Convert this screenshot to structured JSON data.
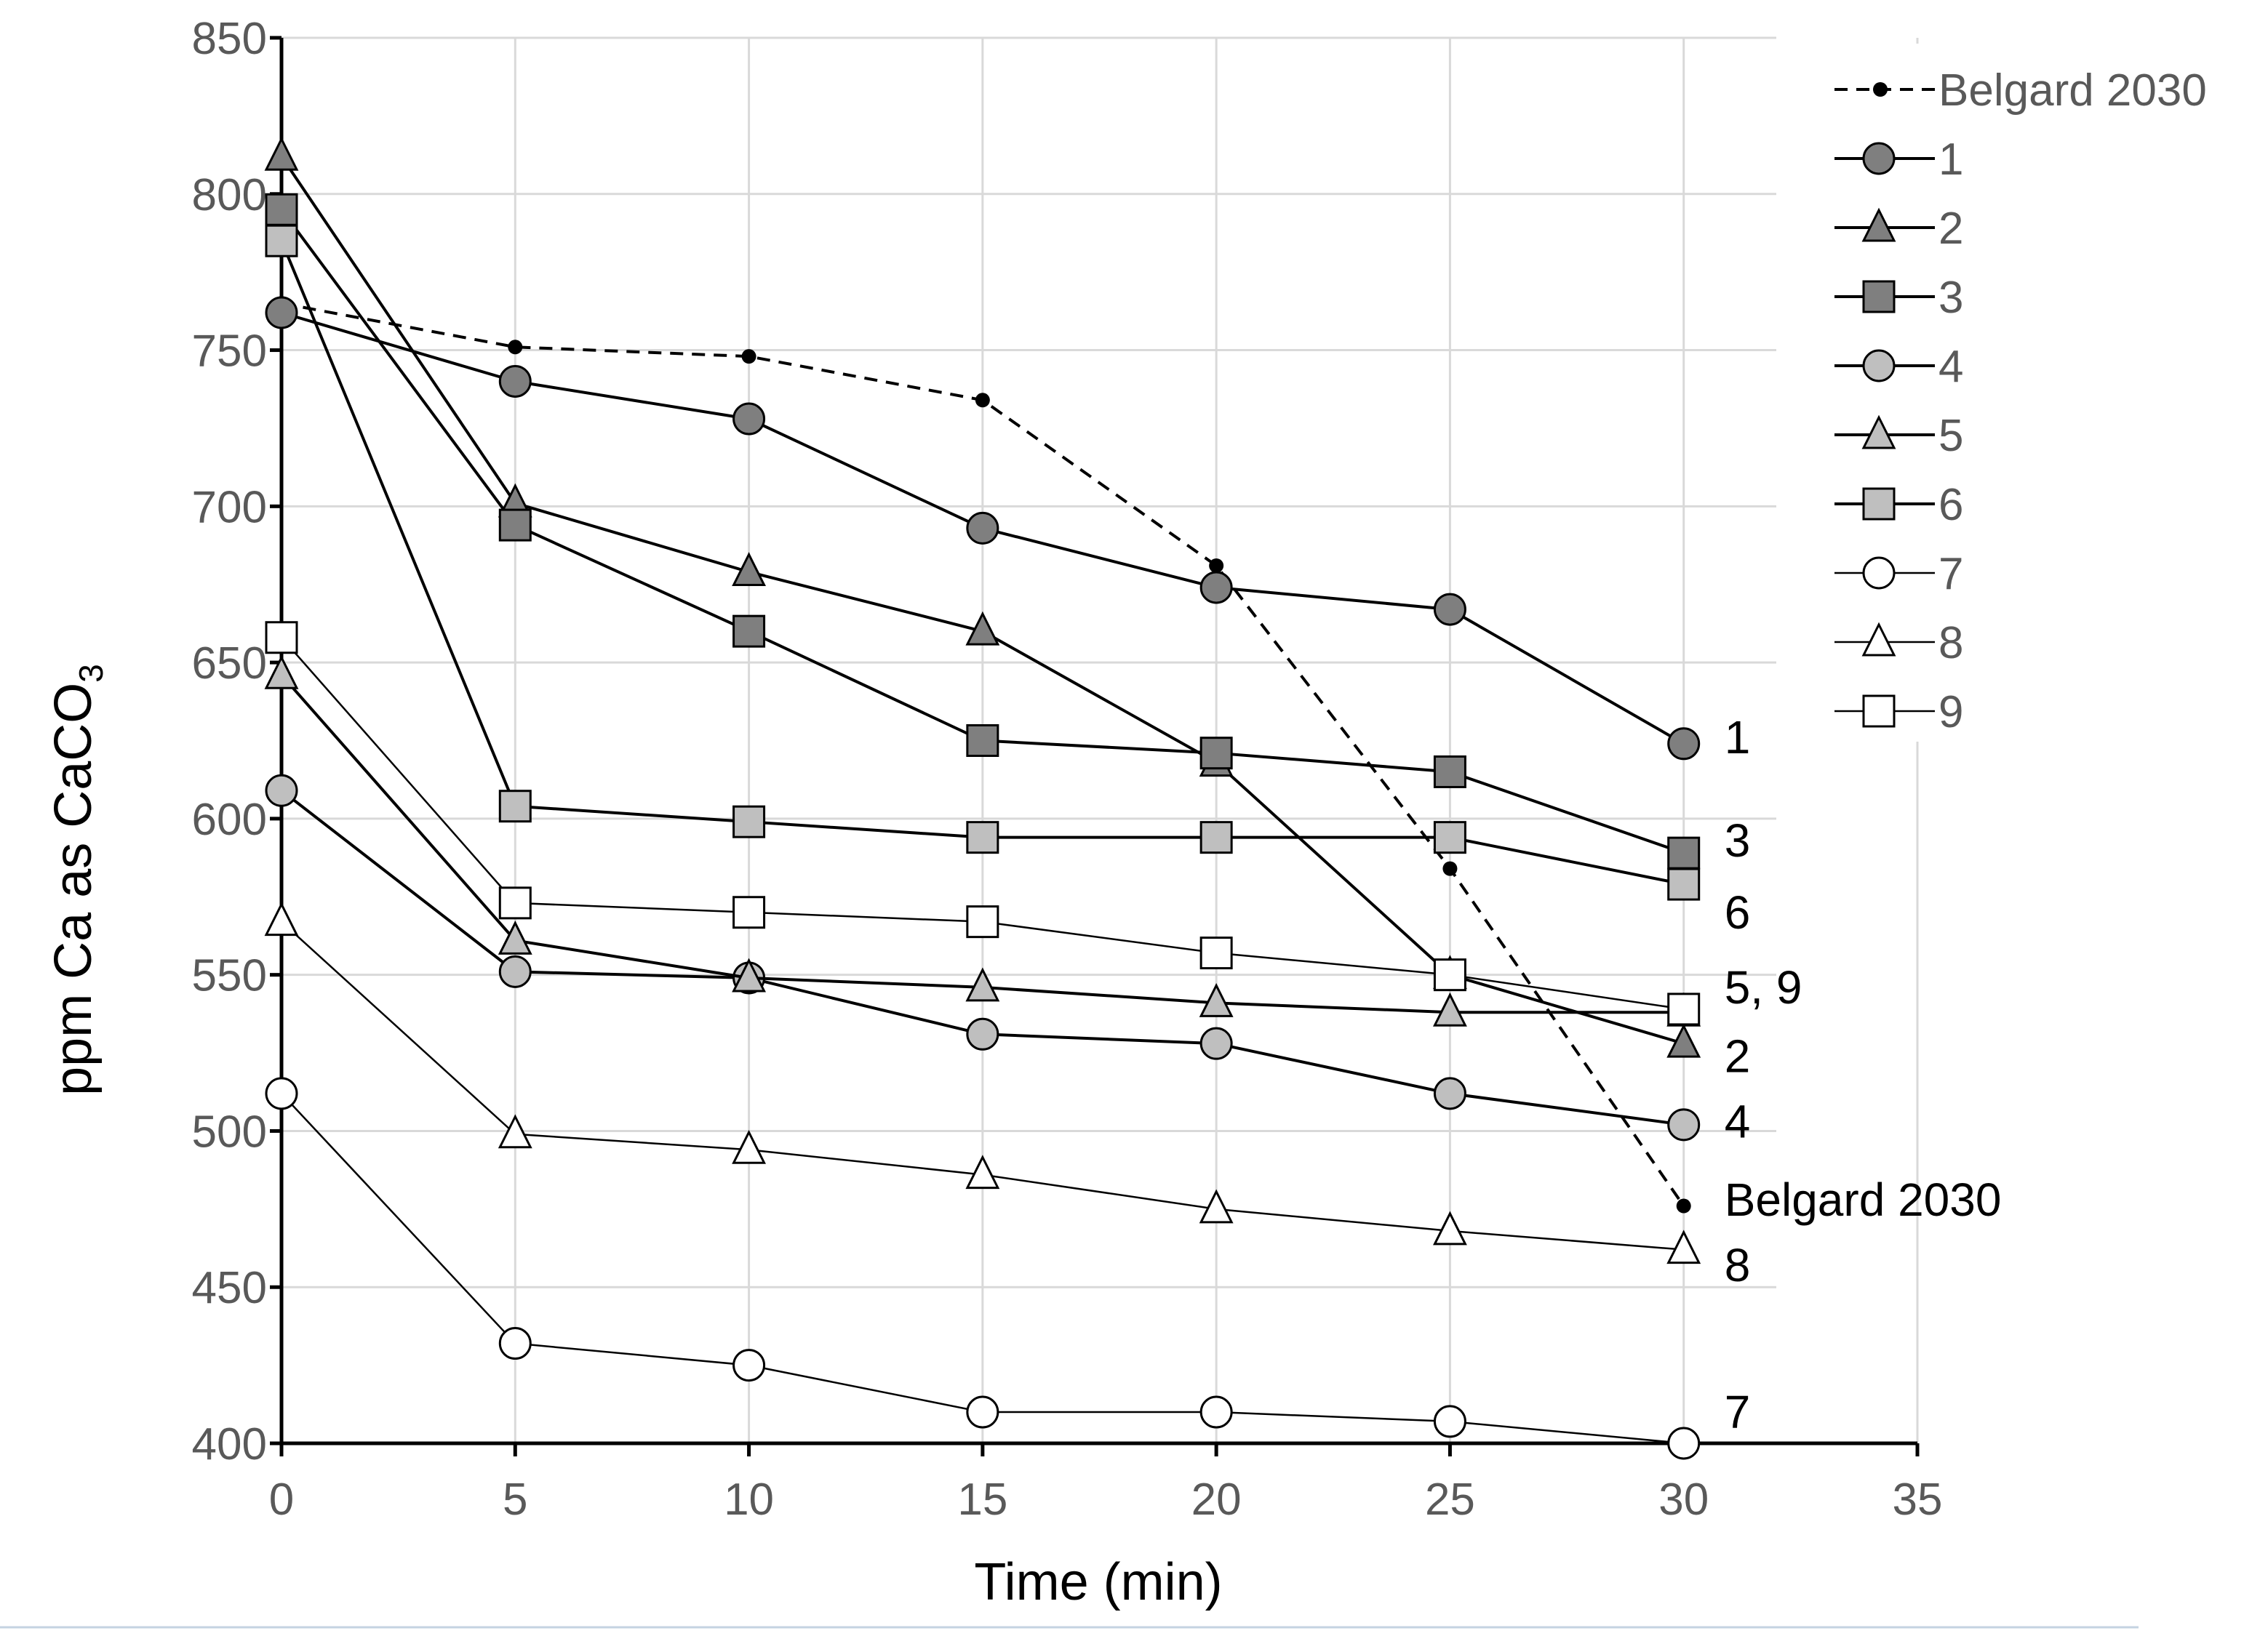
{
  "chart_data": {
    "type": "line",
    "title": "",
    "xlabel": "Time (min)",
    "ylabel_main": "ppm Ca as CaCO",
    "ylabel_sub": "3",
    "xlim": [
      0,
      35
    ],
    "ylim": [
      400,
      850
    ],
    "x_ticks": [
      0,
      5,
      10,
      15,
      20,
      25,
      30,
      35
    ],
    "y_ticks": [
      400,
      450,
      500,
      550,
      600,
      650,
      700,
      750,
      800,
      850
    ],
    "grid": true,
    "legend_position": "top-right",
    "x": [
      0,
      5,
      10,
      15,
      20,
      25,
      30
    ],
    "series": [
      {
        "name": "Belgard 2030",
        "values": [
          765,
          751,
          748,
          734,
          681,
          584,
          476
        ],
        "marker": "dot",
        "dash": true,
        "color": "#000000",
        "fill": "#000000",
        "width": 4
      },
      {
        "name": "1",
        "values": [
          762,
          740,
          728,
          693,
          674,
          667,
          624
        ],
        "marker": "circle",
        "dash": false,
        "color": "#000000",
        "fill": "#7f7f7f",
        "width": 4
      },
      {
        "name": "2",
        "values": [
          812,
          701,
          679,
          660,
          618,
          550,
          528
        ],
        "marker": "triangle",
        "dash": false,
        "color": "#000000",
        "fill": "#7f7f7f",
        "width": 4
      },
      {
        "name": "3",
        "values": [
          795,
          694,
          660,
          625,
          621,
          615,
          589
        ],
        "marker": "square",
        "dash": false,
        "color": "#000000",
        "fill": "#7f7f7f",
        "width": 4
      },
      {
        "name": "4",
        "values": [
          609,
          551,
          549,
          531,
          528,
          512,
          502
        ],
        "marker": "circle",
        "dash": false,
        "color": "#000000",
        "fill": "#bfbfbf",
        "width": 4
      },
      {
        "name": "5",
        "values": [
          646,
          561,
          549,
          546,
          541,
          538,
          538
        ],
        "marker": "triangle",
        "dash": false,
        "color": "#000000",
        "fill": "#bfbfbf",
        "width": 4
      },
      {
        "name": "6",
        "values": [
          785,
          604,
          599,
          594,
          594,
          594,
          579
        ],
        "marker": "square",
        "dash": false,
        "color": "#000000",
        "fill": "#bfbfbf",
        "width": 4
      },
      {
        "name": "7",
        "values": [
          512,
          432,
          425,
          410,
          410,
          407,
          400
        ],
        "marker": "circle",
        "dash": false,
        "color": "#000000",
        "fill": "#ffffff",
        "width": 2.5
      },
      {
        "name": "8",
        "values": [
          567,
          499,
          494,
          486,
          475,
          468,
          462
        ],
        "marker": "triangle",
        "dash": false,
        "color": "#000000",
        "fill": "#ffffff",
        "width": 2.5
      },
      {
        "name": "9",
        "values": [
          658,
          573,
          570,
          567,
          557,
          550,
          539
        ],
        "marker": "square",
        "dash": false,
        "color": "#000000",
        "fill": "#ffffff",
        "width": 2.5
      }
    ],
    "end_labels": [
      {
        "text": "1",
        "x": 30,
        "y": 626
      },
      {
        "text": "3",
        "x": 30,
        "y": 593
      },
      {
        "text": "6",
        "x": 30,
        "y": 570
      },
      {
        "text": "5, 9",
        "x": 30,
        "y": 546
      },
      {
        "text": "2",
        "x": 30,
        "y": 524
      },
      {
        "text": "4",
        "x": 30,
        "y": 503
      },
      {
        "text": "Belgard 2030",
        "x": 30,
        "y": 478
      },
      {
        "text": "8",
        "x": 30,
        "y": 457
      },
      {
        "text": "7",
        "x": 30,
        "y": 410
      }
    ]
  }
}
